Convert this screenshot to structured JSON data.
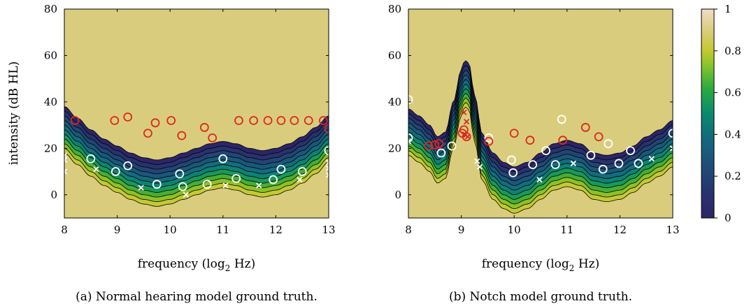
{
  "chart_data": [
    {
      "type": "heatmap",
      "caption": "(a) Normal hearing model ground truth.",
      "xlabel": "frequency (log",
      "xlabel_sub": "2",
      "xlabel_unit": " Hz)",
      "ylabel": "intensity (dB HL)",
      "xlim": [
        8,
        13
      ],
      "ylim": [
        -10,
        80
      ],
      "xticks": [
        "8",
        "9",
        "10",
        "11",
        "12",
        "13"
      ],
      "yticks": [
        "0",
        "20",
        "40",
        "60",
        "80"
      ],
      "threshold_curve": {
        "x": [
          8.0,
          8.25,
          8.5,
          8.75,
          9.0,
          9.25,
          9.5,
          9.75,
          10.0,
          10.25,
          10.5,
          10.75,
          11.0,
          11.25,
          11.5,
          11.75,
          12.0,
          12.25,
          12.5,
          12.75,
          13.0
        ],
        "y": [
          28,
          23,
          18,
          14,
          11,
          8,
          6,
          5,
          6,
          8,
          10,
          12,
          13,
          12,
          10,
          9,
          10,
          12,
          15,
          19,
          24
        ]
      },
      "contour_spacing_db": 2,
      "heard_points": [
        [
          8.2,
          32
        ],
        [
          8.95,
          32
        ],
        [
          9.2,
          33.5
        ],
        [
          9.58,
          26.5
        ],
        [
          9.72,
          31
        ],
        [
          10.02,
          32
        ],
        [
          10.22,
          25.5
        ],
        [
          10.65,
          29
        ],
        [
          10.8,
          24.5
        ],
        [
          11.3,
          32
        ],
        [
          11.58,
          32
        ],
        [
          11.85,
          32
        ],
        [
          12.1,
          32
        ],
        [
          12.35,
          32
        ],
        [
          12.62,
          32
        ],
        [
          12.9,
          32
        ],
        [
          13.0,
          28.5
        ]
      ],
      "unheard_circles": [
        [
          8.5,
          15.5
        ],
        [
          8.97,
          10
        ],
        [
          9.2,
          12.5
        ],
        [
          9.75,
          4.5
        ],
        [
          10.18,
          9
        ],
        [
          10.24,
          3.5
        ],
        [
          10.7,
          4.5
        ],
        [
          11.0,
          15.5
        ],
        [
          11.25,
          7
        ],
        [
          11.95,
          6.5
        ],
        [
          12.1,
          11
        ],
        [
          12.5,
          10
        ],
        [
          13.0,
          19
        ]
      ],
      "unheard_crosses": [
        [
          8.0,
          17
        ],
        [
          8.0,
          15
        ],
        [
          8.0,
          10
        ],
        [
          8.6,
          11
        ],
        [
          9.45,
          3
        ],
        [
          10.3,
          0
        ],
        [
          11.05,
          4
        ],
        [
          11.68,
          4
        ],
        [
          12.45,
          6.5
        ],
        [
          13.0,
          14
        ],
        [
          13.0,
          11.5
        ],
        [
          13.0,
          8.5
        ]
      ]
    },
    {
      "type": "heatmap",
      "caption": "(b) Notch model ground truth.",
      "xlabel": "frequency (log",
      "xlabel_sub": "2",
      "xlabel_unit": " Hz)",
      "ylabel": "",
      "xlim": [
        8,
        13
      ],
      "ylim": [
        -10,
        80
      ],
      "xticks": [
        "8",
        "9",
        "10",
        "11",
        "12",
        "13"
      ],
      "yticks": [
        "0",
        "20",
        "40",
        "60",
        "80"
      ],
      "threshold_curve": {
        "x": [
          8.0,
          8.2,
          8.4,
          8.55,
          8.7,
          8.85,
          9.0,
          9.05,
          9.1,
          9.15,
          9.25,
          9.4,
          9.6,
          9.8,
          10.0,
          10.25,
          10.5,
          10.75,
          11.0,
          11.25,
          11.5,
          11.75,
          12.0,
          12.25,
          12.5,
          12.75,
          13.0
        ],
        "y": [
          27,
          24,
          20,
          15,
          17,
          30,
          44,
          47,
          48,
          46,
          33,
          16,
          8,
          4,
          2,
          4,
          8,
          12,
          13.5,
          12,
          8,
          7,
          8,
          11,
          15,
          18,
          22
        ]
      },
      "contour_spacing_db": 2,
      "heard_points": [
        [
          8.38,
          21
        ],
        [
          8.5,
          21.5
        ],
        [
          8.58,
          22
        ],
        [
          9.02,
          26.5
        ],
        [
          9.05,
          28
        ],
        [
          9.1,
          25
        ],
        [
          9.52,
          23
        ],
        [
          10.0,
          26.5
        ],
        [
          10.3,
          23.5
        ],
        [
          10.92,
          23.5
        ],
        [
          11.35,
          29
        ],
        [
          11.6,
          25
        ]
      ],
      "heard_crosses": [
        [
          9.05,
          35.5
        ],
        [
          9.1,
          31.5
        ],
        [
          9.07,
          26
        ],
        [
          9.12,
          25
        ]
      ],
      "unheard_circles": [
        [
          8.0,
          41
        ],
        [
          8.0,
          24.5
        ],
        [
          8.62,
          18
        ],
        [
          8.82,
          21
        ],
        [
          9.52,
          24.5
        ],
        [
          9.95,
          15
        ],
        [
          9.98,
          9.5
        ],
        [
          10.35,
          13
        ],
        [
          10.6,
          19
        ],
        [
          10.78,
          13
        ],
        [
          10.9,
          32.5
        ],
        [
          11.45,
          17
        ],
        [
          11.68,
          11
        ],
        [
          11.78,
          22
        ],
        [
          11.98,
          13.5
        ],
        [
          12.2,
          19
        ],
        [
          12.35,
          13.5
        ],
        [
          13.0,
          26.5
        ]
      ],
      "unheard_crosses": [
        [
          8.0,
          23
        ],
        [
          9.3,
          14.5
        ],
        [
          9.35,
          12
        ],
        [
          10.48,
          6.5
        ],
        [
          11.12,
          13.5
        ],
        [
          12.6,
          15.5
        ],
        [
          13.0,
          20
        ]
      ]
    }
  ],
  "colorbar": {
    "ticks": [
      "0",
      "0.2",
      "0.4",
      "0.6",
      "0.8",
      "1"
    ],
    "range": [
      0,
      1
    ]
  },
  "colors": {
    "below": "#2c2568",
    "above": "#d9cd7d",
    "heard": "#e0261d",
    "unheard": "#ffffff"
  }
}
